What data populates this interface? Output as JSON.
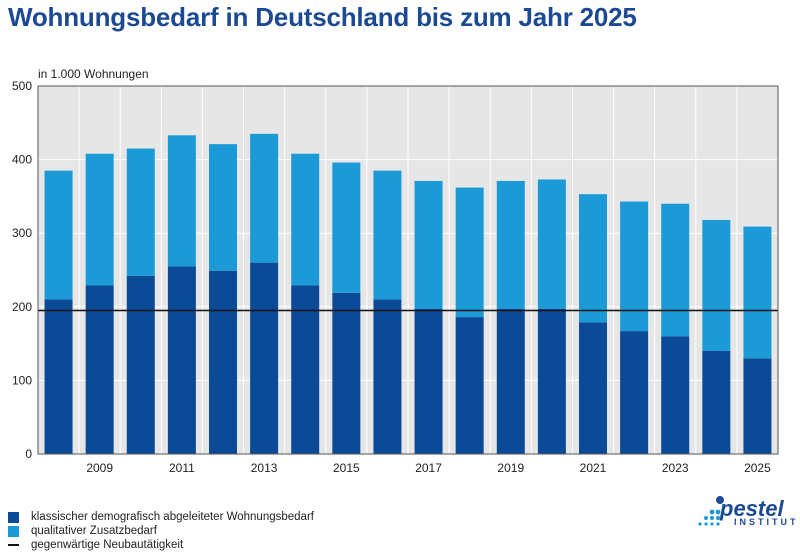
{
  "chart_data": {
    "type": "bar",
    "stacked": true,
    "title": "Wohnungsbedarf in Deutschland bis zum Jahr 2025",
    "unit_label": "in 1.000 Wohnungen",
    "xlabel": "",
    "ylabel": "",
    "ylim": [
      0,
      500
    ],
    "yticks": [
      0,
      100,
      200,
      300,
      400,
      500
    ],
    "grid": true,
    "categories": [
      "2008",
      "2009",
      "2010",
      "2011",
      "2012",
      "2013",
      "2014",
      "2015",
      "2016",
      "2017",
      "2018",
      "2019",
      "2020",
      "2021",
      "2022",
      "2023",
      "2024",
      "2025"
    ],
    "x_tick_labels": [
      "",
      "2009",
      "",
      "2011",
      "",
      "2013",
      "",
      "2015",
      "",
      "2017",
      "",
      "2019",
      "",
      "2021",
      "",
      "2023",
      "",
      "2025"
    ],
    "series": [
      {
        "name": "klassischer demografisch abgeleiteter Wohnungsbedarf",
        "color": "#0b4a96",
        "values": [
          210,
          229,
          242,
          255,
          249,
          260,
          229,
          219,
          210,
          197,
          186,
          197,
          197,
          179,
          167,
          160,
          140,
          130
        ]
      },
      {
        "name": "qualitativer Zusatzbedarf",
        "color": "#1c9ad8",
        "values": [
          175,
          179,
          173,
          178,
          172,
          175,
          179,
          177,
          175,
          174,
          176,
          174,
          176,
          174,
          176,
          180,
          178,
          179
        ]
      }
    ],
    "reference_line": {
      "name": "gegenwärtige Neubautätigkeit",
      "value": 195,
      "color": "#111111"
    }
  },
  "logo": {
    "name": "pestel",
    "subtitle": "INSTITUT"
  }
}
